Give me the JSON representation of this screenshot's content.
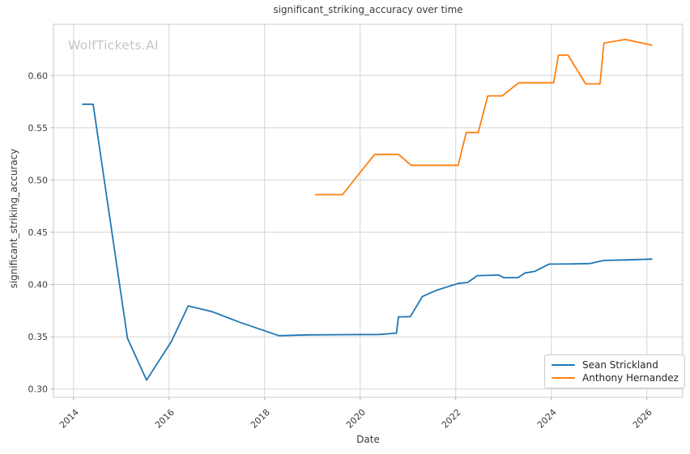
{
  "chart_data": {
    "type": "line",
    "title": "significant_striking_accuracy over time",
    "xlabel": "Date",
    "ylabel": "significant_striking_accuracy",
    "watermark": "WolfTickets.AI",
    "grid": true,
    "legend_position": "lower right",
    "x_unit": "decimal_year",
    "xlim": [
      2013.58,
      2026.75
    ],
    "ylim": [
      0.292,
      0.649
    ],
    "xticks": [
      {
        "value": 2014,
        "label": "2014"
      },
      {
        "value": 2016,
        "label": "2016"
      },
      {
        "value": 2018,
        "label": "2018"
      },
      {
        "value": 2020,
        "label": "2020"
      },
      {
        "value": 2022,
        "label": "2022"
      },
      {
        "value": 2024,
        "label": "2024"
      },
      {
        "value": 2026,
        "label": "2026"
      }
    ],
    "yticks": [
      {
        "value": 0.3,
        "label": "0.30"
      },
      {
        "value": 0.35,
        "label": "0.35"
      },
      {
        "value": 0.4,
        "label": "0.40"
      },
      {
        "value": 0.45,
        "label": "0.45"
      },
      {
        "value": 0.5,
        "label": "0.50"
      },
      {
        "value": 0.55,
        "label": "0.55"
      },
      {
        "value": 0.6,
        "label": "0.60"
      }
    ],
    "series": [
      {
        "name": "Sean Strickland",
        "color": "#1f77b4",
        "points": [
          [
            2014.19,
            0.5725
          ],
          [
            2014.41,
            0.5725
          ],
          [
            2015.13,
            0.3485
          ],
          [
            2015.53,
            0.3085
          ],
          [
            2016.05,
            0.3455
          ],
          [
            2016.4,
            0.3795
          ],
          [
            2016.9,
            0.374
          ],
          [
            2017.5,
            0.3635
          ],
          [
            2018.3,
            0.351
          ],
          [
            2018.9,
            0.3518
          ],
          [
            2019.7,
            0.352
          ],
          [
            2020.4,
            0.3522
          ],
          [
            2020.76,
            0.3535
          ],
          [
            2020.8,
            0.369
          ],
          [
            2021.05,
            0.3692
          ],
          [
            2021.3,
            0.3885
          ],
          [
            2021.6,
            0.3945
          ],
          [
            2022.05,
            0.401
          ],
          [
            2022.25,
            0.402
          ],
          [
            2022.45,
            0.4085
          ],
          [
            2022.9,
            0.409
          ],
          [
            2023.0,
            0.4065
          ],
          [
            2023.3,
            0.4065
          ],
          [
            2023.45,
            0.411
          ],
          [
            2023.65,
            0.4125
          ],
          [
            2023.95,
            0.4195
          ],
          [
            2024.4,
            0.4197
          ],
          [
            2024.8,
            0.42
          ],
          [
            2025.1,
            0.423
          ],
          [
            2025.55,
            0.4235
          ],
          [
            2026.1,
            0.4243
          ]
        ]
      },
      {
        "name": "Anthony Hernandez",
        "color": "#ff7f0e",
        "points": [
          [
            2019.07,
            0.486
          ],
          [
            2019.63,
            0.486
          ],
          [
            2020.3,
            0.5245
          ],
          [
            2020.8,
            0.5245
          ],
          [
            2021.07,
            0.514
          ],
          [
            2022.05,
            0.514
          ],
          [
            2022.22,
            0.5455
          ],
          [
            2022.47,
            0.5455
          ],
          [
            2022.67,
            0.5805
          ],
          [
            2022.97,
            0.5805
          ],
          [
            2023.32,
            0.593
          ],
          [
            2024.05,
            0.593
          ],
          [
            2024.15,
            0.6195
          ],
          [
            2024.35,
            0.6195
          ],
          [
            2024.72,
            0.592
          ],
          [
            2025.02,
            0.592
          ],
          [
            2025.1,
            0.631
          ],
          [
            2025.55,
            0.6345
          ],
          [
            2026.1,
            0.629
          ]
        ]
      }
    ]
  }
}
